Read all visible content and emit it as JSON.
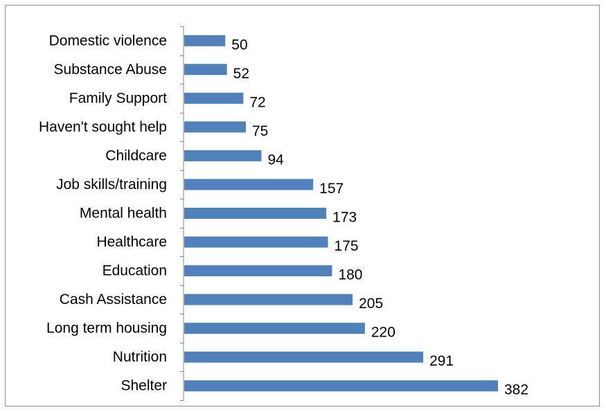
{
  "chart_data": {
    "type": "bar",
    "orientation": "horizontal",
    "title": "",
    "xlabel": "",
    "ylabel": "",
    "categories": [
      "Domestic violence",
      "Substance Abuse",
      "Family Support",
      "Haven't sought help",
      "Childcare",
      "Job skills/training",
      "Mental health",
      "Healthcare",
      "Education",
      "Cash Assistance",
      "Long term housing",
      "Nutrition",
      "Shelter"
    ],
    "values": [
      50,
      52,
      72,
      75,
      94,
      157,
      173,
      175,
      180,
      205,
      220,
      291,
      382
    ],
    "value_labels": [
      "50",
      "52",
      "72",
      "75",
      "94",
      "157",
      "173",
      "175",
      "180",
      "205",
      "220",
      "291",
      "382"
    ],
    "xlim": [
      0,
      382
    ],
    "bar_color": "#4F81BD",
    "grid": false,
    "legend": "none",
    "data_labels": true
  }
}
